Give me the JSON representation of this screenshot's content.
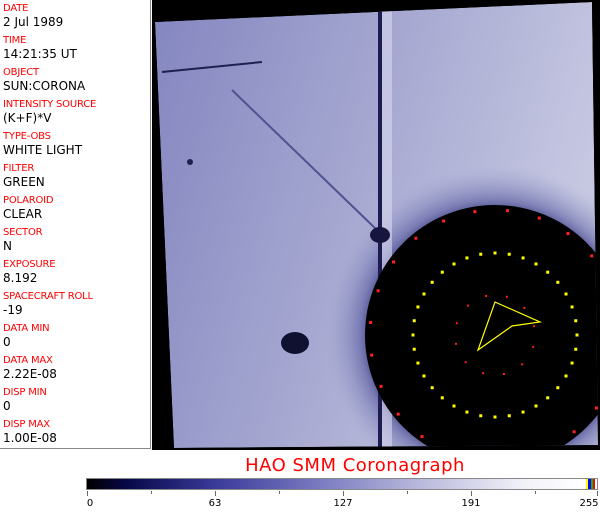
{
  "fields": [
    {
      "label": "DATE",
      "value": "2 Jul 1989"
    },
    {
      "label": "TIME",
      "value": "14:21:35 UT"
    },
    {
      "label": "OBJECT",
      "value": "SUN:CORONA"
    },
    {
      "label": "INTENSITY SOURCE",
      "value": "(K+F)*V"
    },
    {
      "label": "TYPE-OBS",
      "value": "WHITE LIGHT"
    },
    {
      "label": "FILTER",
      "value": "GREEN"
    },
    {
      "label": "POLAROID",
      "value": "CLEAR"
    },
    {
      "label": "SECTOR",
      "value": "N"
    },
    {
      "label": "EXPOSURE",
      "value": "8.192"
    },
    {
      "label": "SPACECRAFT ROLL",
      "value": "-19"
    },
    {
      "label": "DATA MIN",
      "value": "0"
    },
    {
      "label": "DATA MAX",
      "value": "2.22E-08"
    },
    {
      "label": "DISP MIN",
      "value": "0"
    },
    {
      "label": "DISP MAX",
      "value": "1.00E-08"
    }
  ],
  "title": "HAO   SMM Coronagraph",
  "colorbar": {
    "ticks": [
      "0",
      "63",
      "127",
      "191",
      "255"
    ],
    "marker_colors": [
      "#ffff00",
      "#0000ff",
      "#00c000",
      "#ff0000"
    ]
  },
  "colors": {
    "label": "#ff0000",
    "field": "#9a9cc8",
    "occulter": "#000000"
  }
}
